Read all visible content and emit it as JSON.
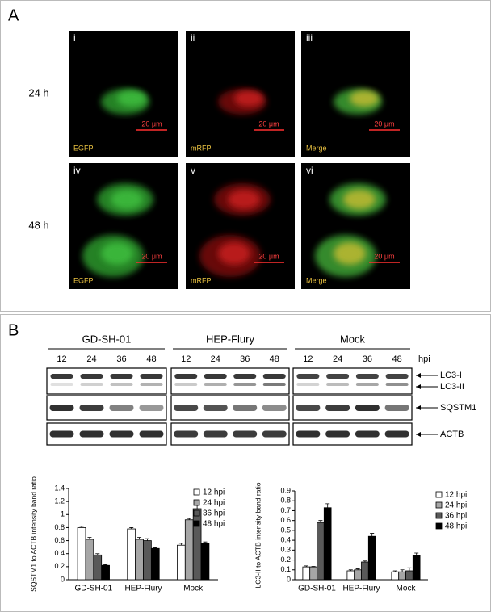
{
  "panel_a": {
    "label": "A",
    "rows": [
      {
        "label": "24 h",
        "images": [
          {
            "index": "i",
            "channel": "EGFP",
            "scale": "20 μm"
          },
          {
            "index": "ii",
            "channel": "mRFP",
            "scale": "20 μm"
          },
          {
            "index": "iii",
            "channel": "Merge",
            "scale": "20 μm"
          }
        ]
      },
      {
        "label": "48 h",
        "images": [
          {
            "index": "iv",
            "channel": "EGFP",
            "scale": "20 μm"
          },
          {
            "index": "v",
            "channel": "mRFP",
            "scale": "20 μm"
          },
          {
            "index": "vi",
            "channel": "Merge",
            "scale": "20 μm"
          }
        ]
      }
    ]
  },
  "panel_b": {
    "label": "B",
    "groups": [
      {
        "name": "GD-SH-01",
        "lanes": [
          "12",
          "24",
          "36",
          "48"
        ]
      },
      {
        "name": "HEP-Flury",
        "lanes": [
          "12",
          "24",
          "36",
          "48"
        ]
      },
      {
        "name": "Mock",
        "lanes": [
          "12",
          "24",
          "36",
          "48"
        ]
      }
    ],
    "unit": "hpi",
    "markers": [
      "LC3-I",
      "LC3-II",
      "SQSTM1",
      "ACTB"
    ]
  },
  "chart_data": [
    {
      "type": "bar",
      "ylabel": "SQSTM1 to ACTB intensity band ratio",
      "categories": [
        "GD-SH-01",
        "HEP-Flury",
        "Mock"
      ],
      "series": [
        {
          "name": "12 hpi",
          "color": "#ffffff",
          "values": [
            0.8,
            0.78,
            0.53
          ],
          "errors": [
            0.02,
            0.02,
            0.03
          ]
        },
        {
          "name": "24 hpi",
          "color": "#a6a6a6",
          "values": [
            0.62,
            0.62,
            0.92
          ],
          "errors": [
            0.03,
            0.03,
            0.02
          ]
        },
        {
          "name": "36 hpi",
          "color": "#595959",
          "values": [
            0.38,
            0.6,
            1.09
          ],
          "errors": [
            0.02,
            0.03,
            0.12
          ]
        },
        {
          "name": "48 hpi",
          "color": "#000000",
          "values": [
            0.22,
            0.48,
            0.56
          ],
          "errors": [
            0.01,
            0.01,
            0.02
          ]
        }
      ],
      "ylim": [
        0,
        1.4
      ],
      "yticks": [
        0,
        0.2,
        0.4,
        0.6,
        0.8,
        1,
        1.2,
        1.4
      ]
    },
    {
      "type": "bar",
      "ylabel": "LC3-II to ACTB intensity band ratio",
      "categories": [
        "GD-SH-01",
        "HEP-Flury",
        "Mock"
      ],
      "series": [
        {
          "name": "12 hpi",
          "color": "#ffffff",
          "values": [
            0.13,
            0.09,
            0.08
          ],
          "errors": [
            0.01,
            0.01,
            0.01
          ]
        },
        {
          "name": "24 hpi",
          "color": "#a6a6a6",
          "values": [
            0.13,
            0.1,
            0.08
          ],
          "errors": [
            0.005,
            0.01,
            0.02
          ]
        },
        {
          "name": "36 hpi",
          "color": "#595959",
          "values": [
            0.58,
            0.18,
            0.09
          ],
          "errors": [
            0.02,
            0.01,
            0.03
          ]
        },
        {
          "name": "48 hpi",
          "color": "#000000",
          "values": [
            0.73,
            0.44,
            0.25
          ],
          "errors": [
            0.04,
            0.03,
            0.02
          ]
        }
      ],
      "ylim": [
        0,
        0.9
      ],
      "yticks": [
        0,
        0.1,
        0.2,
        0.3,
        0.4,
        0.5,
        0.6,
        0.7,
        0.8,
        0.9
      ]
    }
  ]
}
